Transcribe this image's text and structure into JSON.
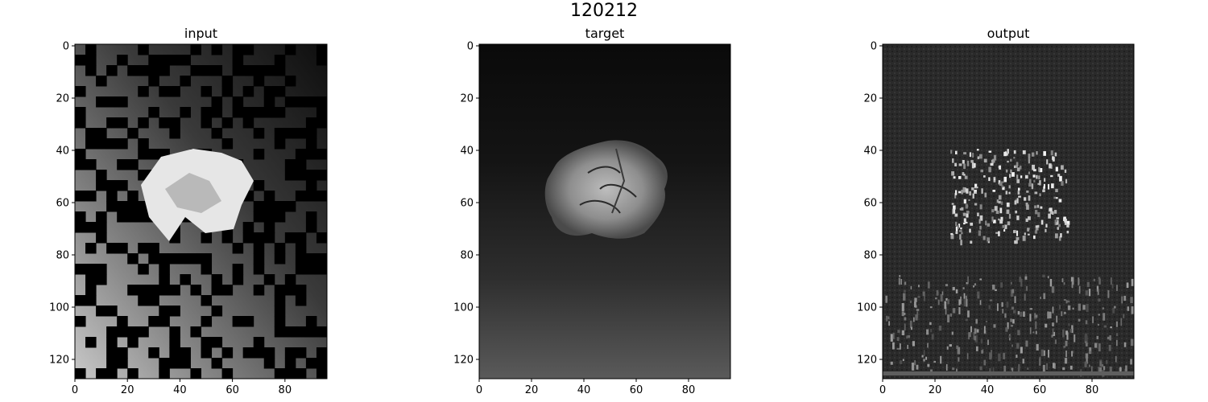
{
  "figure": {
    "suptitle": "120212"
  },
  "panels": [
    {
      "title": "input",
      "xticks": [
        "0",
        "20",
        "40",
        "60",
        "80"
      ],
      "yticks": [
        "0",
        "20",
        "40",
        "60",
        "80",
        "100",
        "120"
      ],
      "colormap": "gray"
    },
    {
      "title": "target",
      "xticks": [
        "0",
        "20",
        "40",
        "60",
        "80"
      ],
      "yticks": [
        "0",
        "20",
        "40",
        "60",
        "80",
        "100",
        "120"
      ],
      "colormap": "gray"
    },
    {
      "title": "output",
      "xticks": [
        "0",
        "20",
        "40",
        "60",
        "80"
      ],
      "yticks": [
        "0",
        "20",
        "40",
        "60",
        "80",
        "100",
        "120"
      ],
      "colormap": "gray"
    }
  ],
  "image_extent": {
    "width": 96,
    "height": 128
  }
}
